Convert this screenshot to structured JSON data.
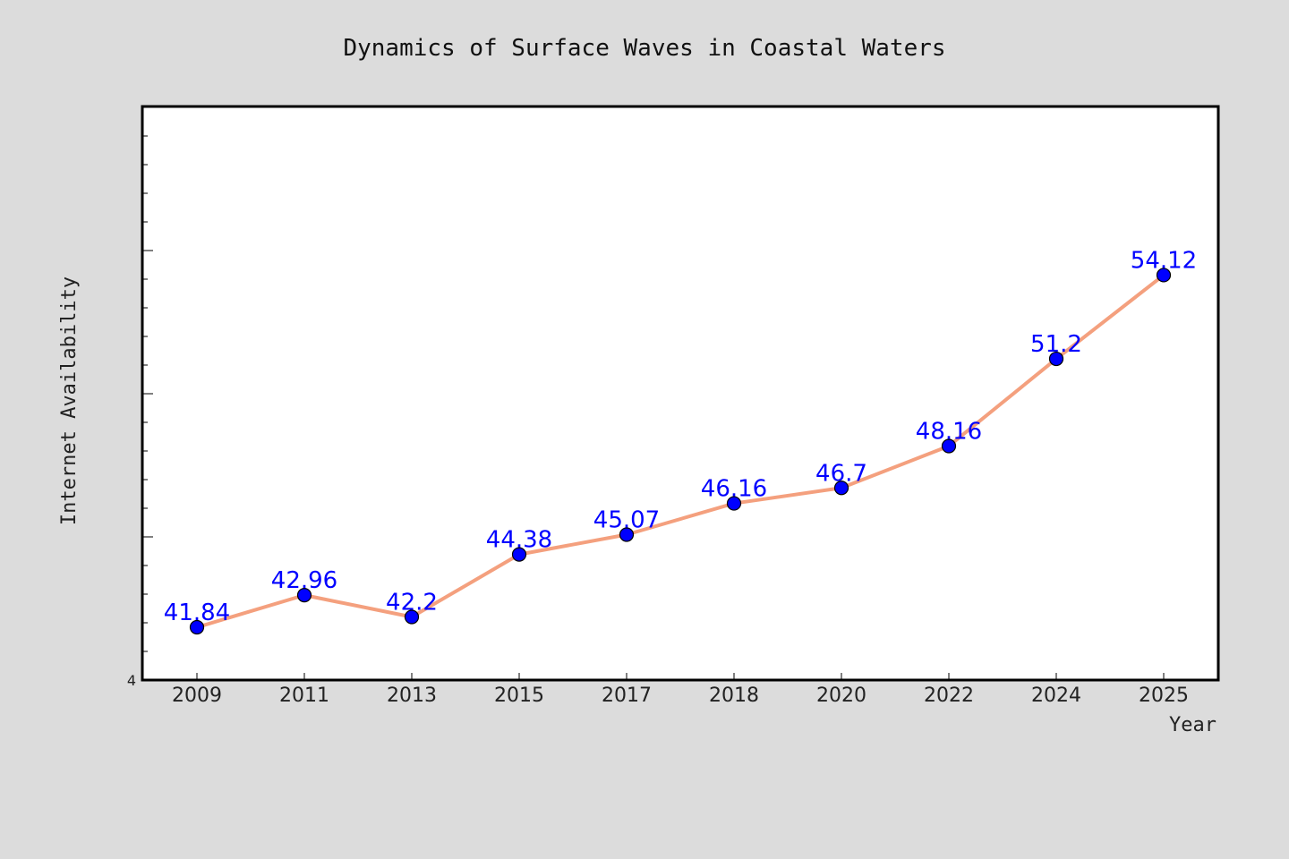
{
  "chart_data": {
    "type": "line",
    "title": "Dynamics of Surface Waves in Coastal Waters",
    "xlabel": "Year",
    "ylabel": "Internet Availability",
    "categories": [
      "2009",
      "2011",
      "2013",
      "2015",
      "2017",
      "2018",
      "2020",
      "2022",
      "2024",
      "2025"
    ],
    "series": [
      {
        "values": [
          41.84,
          42.96,
          42.2,
          44.38,
          45.07,
          46.16,
          46.7,
          48.16,
          51.2,
          54.12
        ]
      }
    ],
    "data_labels": [
      "41.84",
      "42.96",
      "42.2",
      "44.38",
      "45.07",
      "46.16",
      "46.7",
      "48.16",
      "51.2",
      "54.12"
    ],
    "y_tick_label": "4",
    "ylim": [
      40,
      60
    ],
    "grid": false,
    "legend": "none",
    "colors": {
      "background": "#dcdcdc",
      "plot_background": "#ffffff",
      "line": "#f4a07e",
      "marker": "#0000ff",
      "data_label": "#0000ff"
    }
  }
}
